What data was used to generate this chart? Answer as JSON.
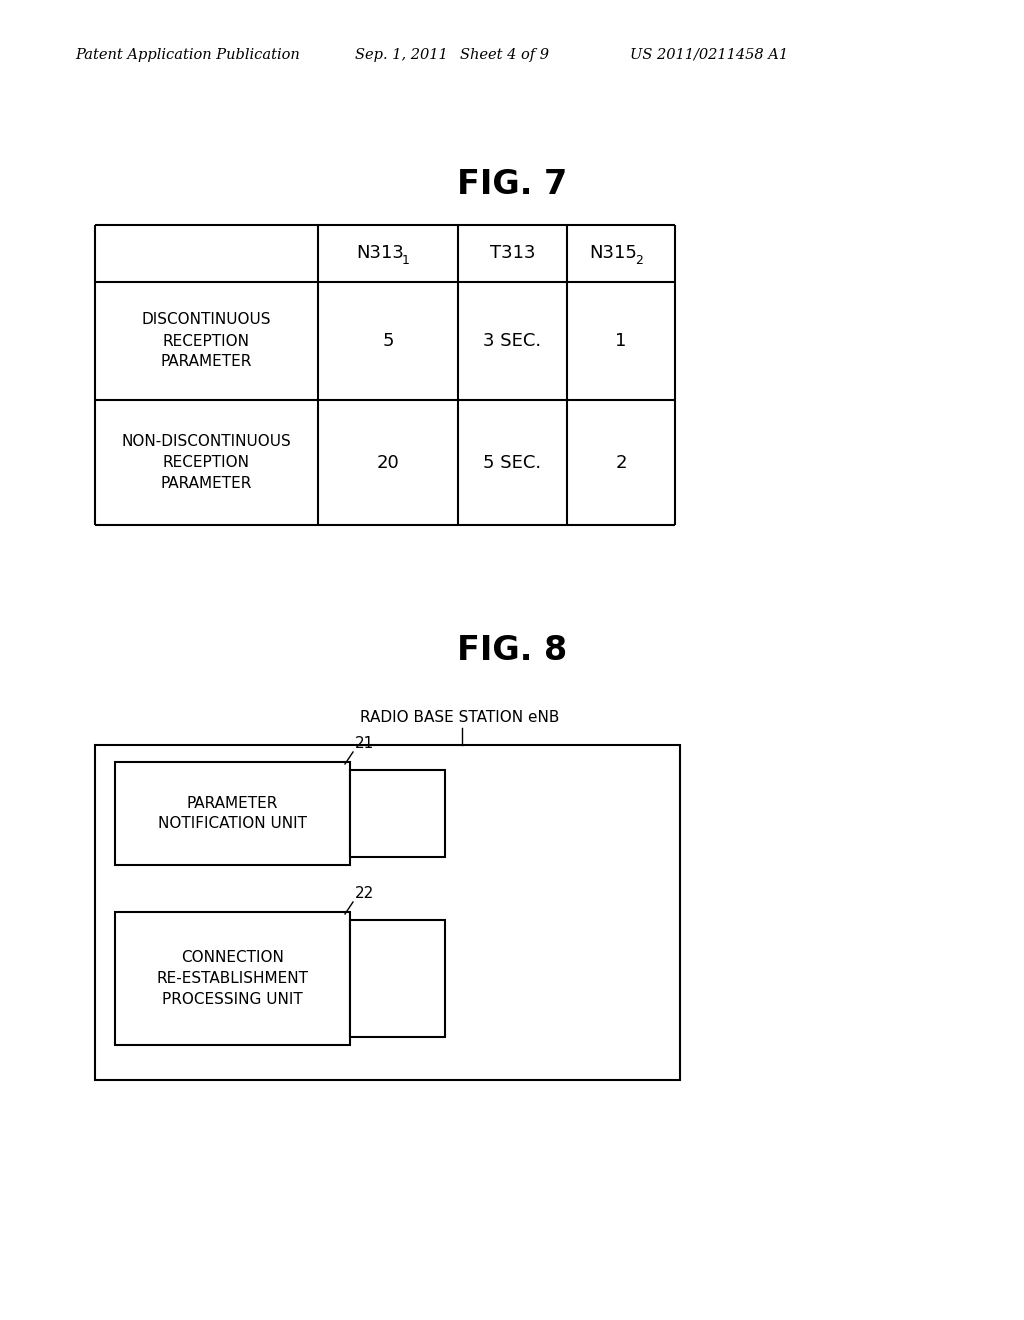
{
  "bg_color": "#ffffff",
  "header_text": "Patent Application Publication",
  "header_date": "Sep. 1, 2011",
  "header_sheet": "Sheet 4 of 9",
  "header_patent": "US 2011/0211458 A1",
  "fig7_title": "FIG. 7",
  "fig8_title": "FIG. 8",
  "table": {
    "col_headers_base": [
      "N313",
      "T313",
      "N315"
    ],
    "col_headers_sub": [
      "1",
      "",
      "2"
    ],
    "row_labels": [
      "DISCONTINUOUS\nRECEPTION\nPARAMETER",
      "NON-DISCONTINUOUS\nRECEPTION\nPARAMETER"
    ],
    "data": [
      [
        "5",
        "3 SEC.",
        "1"
      ],
      [
        "20",
        "5 SEC.",
        "2"
      ]
    ]
  },
  "fig8": {
    "outer_box_label": "RADIO BASE STATION eNB",
    "unit1_label": "21",
    "unit1_text": "PARAMETER\nNOTIFICATION UNIT",
    "unit2_label": "22",
    "unit2_text": "CONNECTION\nRE-ESTABLISHMENT\nPROCESSING UNIT"
  }
}
